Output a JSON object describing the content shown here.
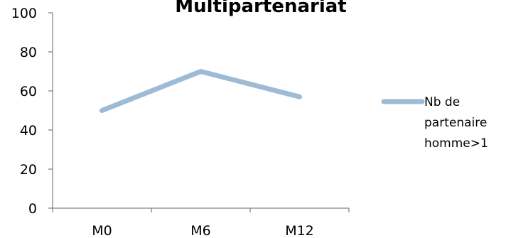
{
  "chart_data": {
    "type": "line",
    "title": "Multipartenariat",
    "xlabel": "",
    "ylabel": "",
    "categories": [
      "M0",
      "M6",
      "M12"
    ],
    "ylim": [
      0,
      100
    ],
    "yticks": [
      0,
      20,
      40,
      60,
      80,
      100
    ],
    "grid": false,
    "legend_position": "right",
    "series": [
      {
        "name": "Nb de partenaire homme>1",
        "legend_lines": [
          "Nb de",
          "partenaire",
          "homme>1"
        ],
        "values": [
          50,
          70,
          57
        ],
        "color": "#9DBBD5"
      }
    ]
  }
}
